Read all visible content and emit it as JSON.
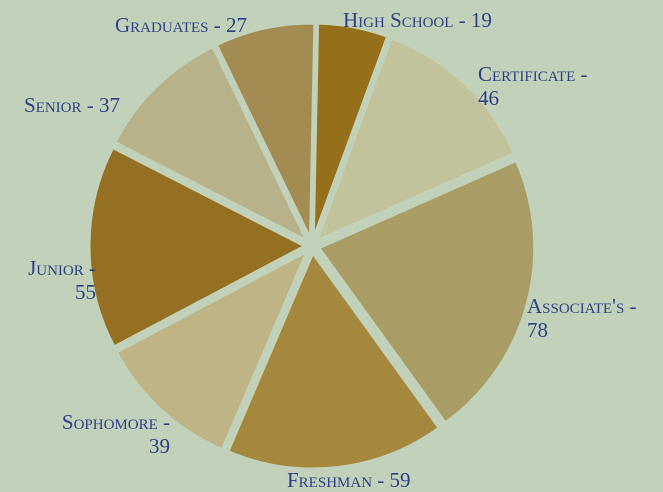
{
  "chart_data": {
    "type": "pie",
    "categories": [
      "High School",
      "Certificate",
      "Associate's",
      "Freshman",
      "Sophomore",
      "Junior",
      "Senior",
      "Graduates"
    ],
    "values": [
      19,
      46,
      78,
      59,
      39,
      55,
      37,
      27
    ],
    "colors": [
      "#956f1a",
      "#c3c39b",
      "#a99c64",
      "#a5883e",
      "#beb486",
      "#957022",
      "#b8b28a",
      "#a28c52"
    ],
    "labels": [
      {
        "line1": "High School - 19",
        "line2": ""
      },
      {
        "line1": "Certificate -",
        "line2": "46"
      },
      {
        "line1": "Associate's -",
        "line2": "78"
      },
      {
        "line1": "Freshman - 59",
        "line2": ""
      },
      {
        "line1": "Sophomore -",
        "line2": "39"
      },
      {
        "line1": "Junior -",
        "line2": "55"
      },
      {
        "line1": "Senior - 37",
        "line2": ""
      },
      {
        "line1": "Graduates - 27",
        "line2": ""
      }
    ],
    "legend": "none",
    "background": "#c2d2ba",
    "label_color": "#2e3f86"
  }
}
